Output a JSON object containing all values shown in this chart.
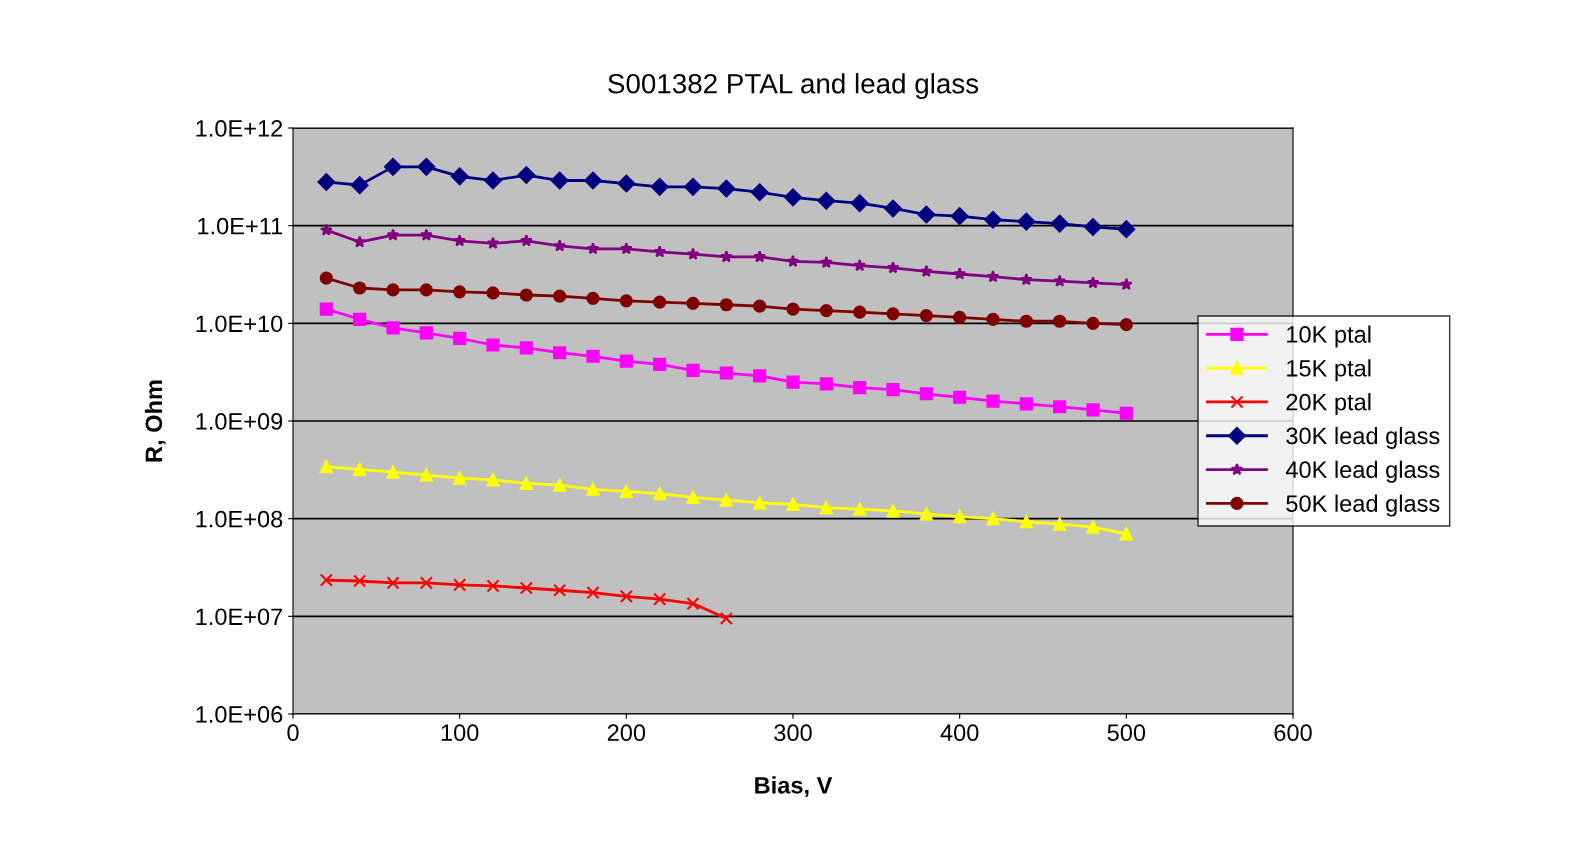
{
  "chart_data": {
    "type": "line",
    "title": "S001382 PTAL and lead glass",
    "xlabel": "Bias, V",
    "ylabel": "R, Ohm",
    "log": "y",
    "grid": "y",
    "legend": "right",
    "xlim": [
      0,
      600
    ],
    "xticks": [
      0,
      100,
      200,
      300,
      400,
      500,
      600
    ],
    "ylim": [
      1000000.0,
      1000000000000.0
    ],
    "yticks": [
      {
        "value": 1000000.0,
        "label": "1.0E+06"
      },
      {
        "value": 10000000.0,
        "label": "1.0E+07"
      },
      {
        "value": 100000000.0,
        "label": "1.0E+08"
      },
      {
        "value": 1000000000.0,
        "label": "1.0E+09"
      },
      {
        "value": 10000000000.0,
        "label": "1.0E+10"
      },
      {
        "value": 100000000000.0,
        "label": "1.0E+11"
      },
      {
        "value": 1000000000000.0,
        "label": "1.0E+12"
      }
    ],
    "x": [
      20,
      40,
      60,
      80,
      100,
      120,
      140,
      160,
      180,
      200,
      220,
      240,
      260,
      280,
      300,
      320,
      340,
      360,
      380,
      400,
      420,
      440,
      460,
      480,
      500
    ],
    "series": [
      {
        "name": "10K ptal",
        "color": "#ff00ff",
        "marker": "square",
        "values": [
          14000000000.0,
          11000000000.0,
          9000000000.0,
          8000000000.0,
          7000000000.0,
          6000000000.0,
          5600000000.0,
          5000000000.0,
          4600000000.0,
          4100000000.0,
          3800000000.0,
          3300000000.0,
          3100000000.0,
          2900000000.0,
          2500000000.0,
          2400000000.0,
          2200000000.0,
          2100000000.0,
          1900000000.0,
          1750000000.0,
          1600000000.0,
          1500000000.0,
          1400000000.0,
          1300000000.0,
          1200000000.0
        ]
      },
      {
        "name": "15K ptal",
        "color": "#ffff00",
        "marker": "triangle",
        "values": [
          340000000.0,
          320000000.0,
          300000000.0,
          280000000.0,
          260000000.0,
          250000000.0,
          230000000.0,
          220000000.0,
          200000000.0,
          190000000.0,
          180000000.0,
          165000000.0,
          155000000.0,
          145000000.0,
          140000000.0,
          130000000.0,
          125000000.0,
          120000000.0,
          112000000.0,
          105000000.0,
          100000000.0,
          93000000.0,
          88000000.0,
          82000000.0,
          70000000.0
        ]
      },
      {
        "name": "20K ptal",
        "color": "#ff0000",
        "marker": "cross",
        "x": [
          20,
          40,
          60,
          80,
          100,
          120,
          140,
          160,
          180,
          200,
          220,
          240,
          260
        ],
        "values": [
          23500000.0,
          23000000.0,
          22000000.0,
          22000000.0,
          21000000.0,
          20500000.0,
          19500000.0,
          18500000.0,
          17500000.0,
          16000000.0,
          15000000.0,
          13500000.0,
          9500000.0
        ]
      },
      {
        "name": "30K lead glass",
        "color": "#000080",
        "marker": "diamond",
        "values": [
          280000000000.0,
          260000000000.0,
          400000000000.0,
          400000000000.0,
          320000000000.0,
          290000000000.0,
          330000000000.0,
          290000000000.0,
          290000000000.0,
          270000000000.0,
          250000000000.0,
          250000000000.0,
          240000000000.0,
          220000000000.0,
          195000000000.0,
          180000000000.0,
          170000000000.0,
          150000000000.0,
          130000000000.0,
          125000000000.0,
          115000000000.0,
          110000000000.0,
          105000000000.0,
          97000000000.0,
          92000000000.0
        ]
      },
      {
        "name": "40K lead glass",
        "color": "#800080",
        "marker": "star",
        "values": [
          90000000000.0,
          68000000000.0,
          80000000000.0,
          80000000000.0,
          70000000000.0,
          66000000000.0,
          70000000000.0,
          62000000000.0,
          58000000000.0,
          58000000000.0,
          54000000000.0,
          51000000000.0,
          48000000000.0,
          48000000000.0,
          43000000000.0,
          42000000000.0,
          39000000000.0,
          37000000000.0,
          34000000000.0,
          32000000000.0,
          30000000000.0,
          28000000000.0,
          27000000000.0,
          26000000000.0,
          25000000000.0
        ]
      },
      {
        "name": "50K lead glass",
        "color": "#800000",
        "marker": "circle",
        "values": [
          29000000000.0,
          23000000000.0,
          22000000000.0,
          22000000000.0,
          21000000000.0,
          20500000000.0,
          19500000000.0,
          19000000000.0,
          18000000000.0,
          17000000000.0,
          16500000000.0,
          16000000000.0,
          15500000000.0,
          15000000000.0,
          14000000000.0,
          13500000000.0,
          13000000000.0,
          12500000000.0,
          12000000000.0,
          11500000000.0,
          11000000000.0,
          10500000000.0,
          10500000000.0,
          10000000000.0,
          9700000000.0
        ]
      }
    ]
  }
}
